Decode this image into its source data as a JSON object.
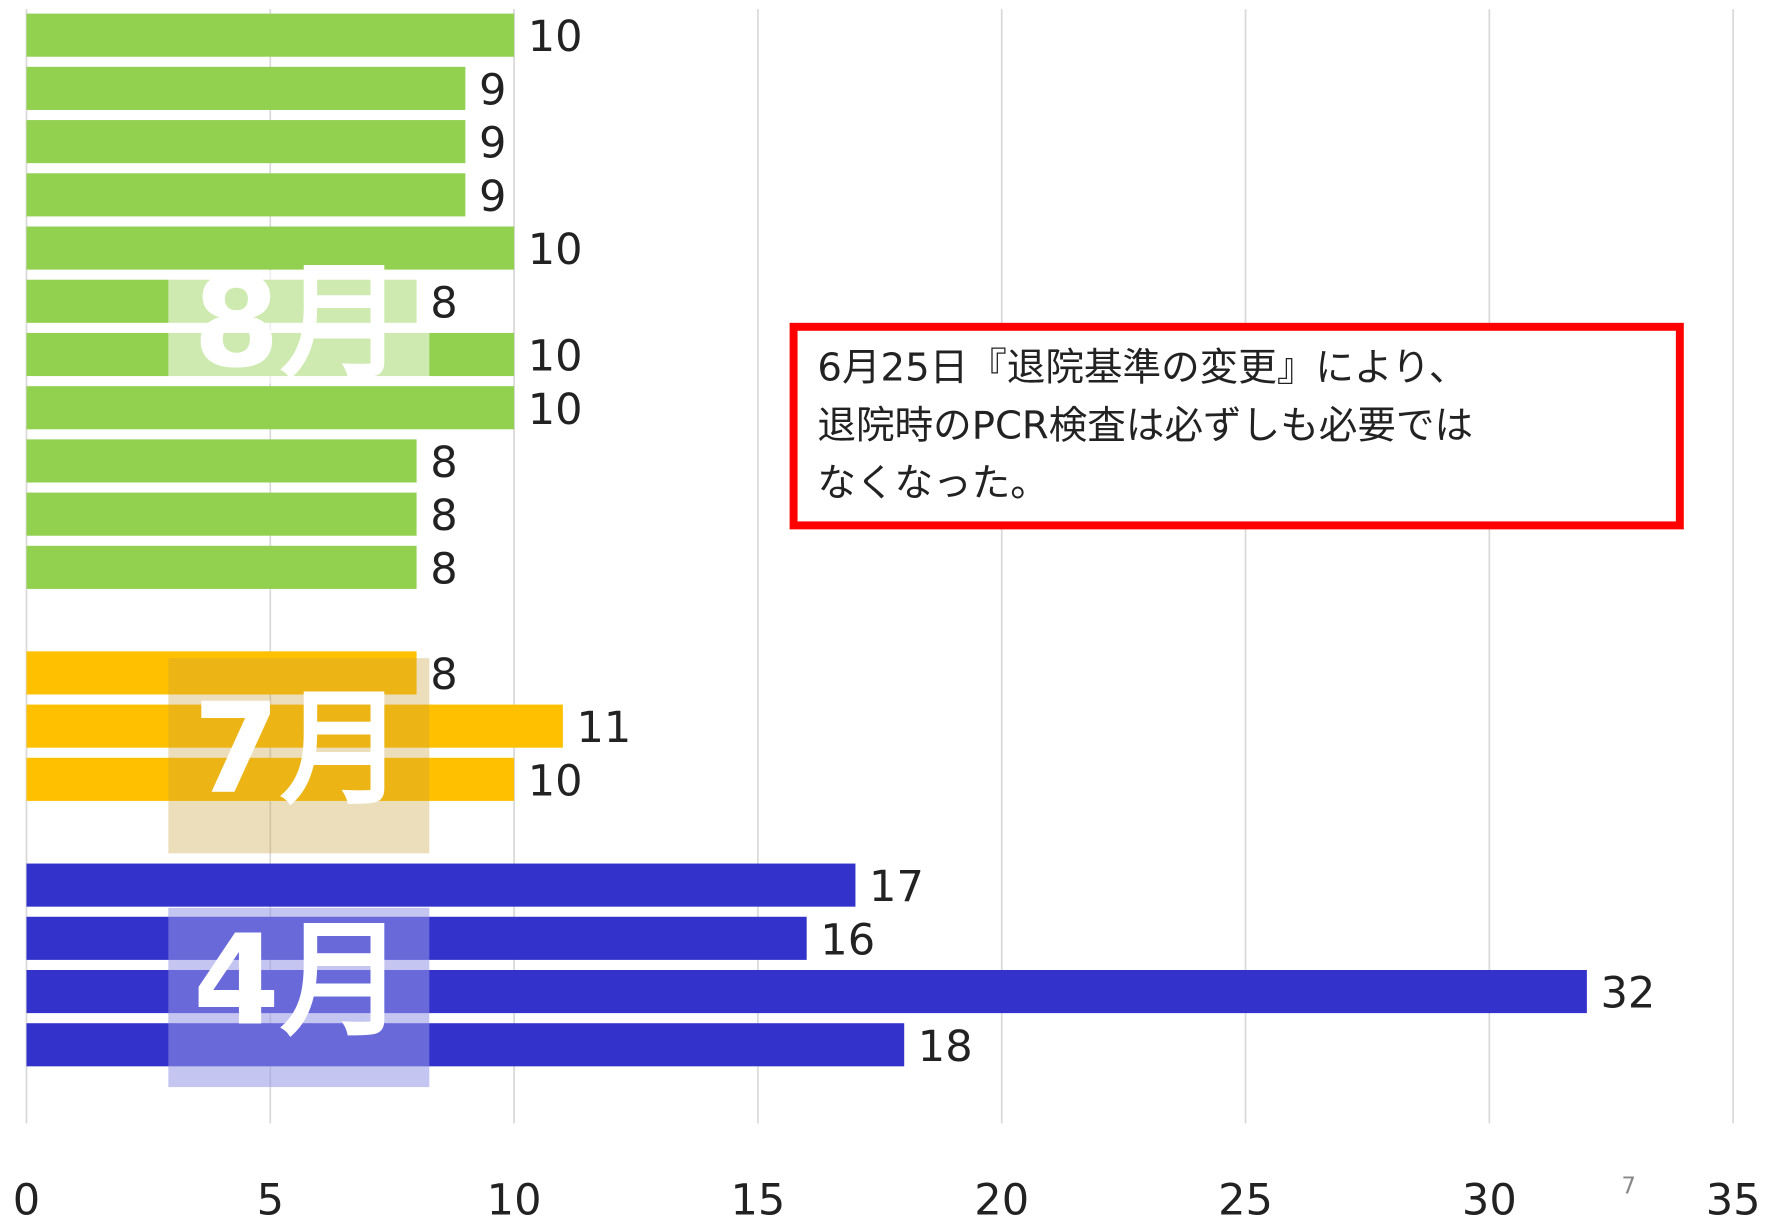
{
  "chart_data": {
    "type": "bar",
    "orientation": "horizontal",
    "series": [
      {
        "name": "8月",
        "color": "#92d050",
        "values": [
          10,
          9,
          9,
          9,
          10,
          8,
          10,
          10,
          8,
          8,
          8
        ]
      },
      {
        "name": "7月",
        "color": "#ffc000",
        "values": [
          8,
          11,
          10
        ]
      },
      {
        "name": "4月",
        "color": "#3333cc",
        "values": [
          17,
          16,
          32,
          18
        ]
      }
    ],
    "xlim": [
      0,
      35
    ],
    "xticks": [
      0,
      5,
      10,
      15,
      20,
      25,
      30,
      35
    ],
    "grid": true,
    "annotation": [
      "6月25日『退院基準の変更』により、",
      "退院時のPCR検査は必ずしも必要では",
      "なくなった。"
    ],
    "page_number": "7"
  }
}
